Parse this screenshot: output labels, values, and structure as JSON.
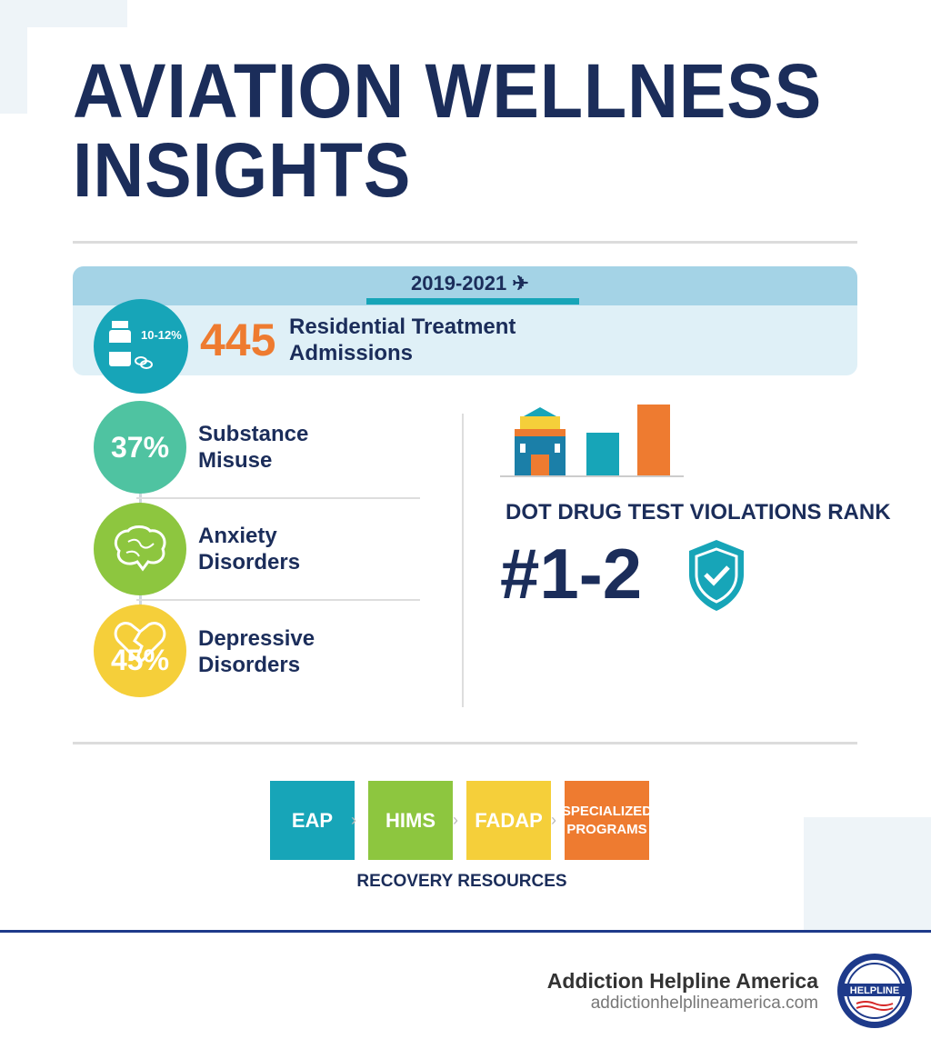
{
  "title": {
    "line1": "AVIATION WELLNESS",
    "line2": "INSIGHTS"
  },
  "banner": {
    "period": "2019-2021",
    "icon": "airplane-icon",
    "circle_text": "10-12%",
    "number": "445",
    "label_line1": "Residential Treatment",
    "label_line2": "Admissions"
  },
  "stats": [
    {
      "value": "37%",
      "label_line1": "Substance",
      "label_line2": "Misuse",
      "color": "#4fc3a1"
    },
    {
      "value": "",
      "icon": "brain-icon",
      "label_line1": "Anxiety",
      "label_line2": "Disorders",
      "color": "#8dc63f"
    },
    {
      "value": "45%",
      "icon": "broken-heart-icon",
      "label_line1": "Depressive",
      "label_line2": "Disorders",
      "color": "#f5cf3a"
    }
  ],
  "dot": {
    "heading": "DOT DRUG TEST VIOLATIONS RANK",
    "rank": "#1-2"
  },
  "resources": {
    "items": [
      {
        "label": "EAP",
        "color": "#17a5b8"
      },
      {
        "label": "HIMS",
        "color": "#8dc63f"
      },
      {
        "label": "FADAP",
        "color": "#f5cf3a"
      },
      {
        "label": "SPECIALIZED PROGRAMS",
        "color": "#ee7b30"
      }
    ],
    "caption": "RECOVERY RESOURCES"
  },
  "footer": {
    "org": "Addiction Helpline America",
    "url": "addictionhelplineamerica.com",
    "logo_text": "ADDICTION HELPLINE AMERICA"
  },
  "colors": {
    "navy": "#1b2d5a",
    "teal": "#17a5b8",
    "orange": "#ee7b30"
  }
}
